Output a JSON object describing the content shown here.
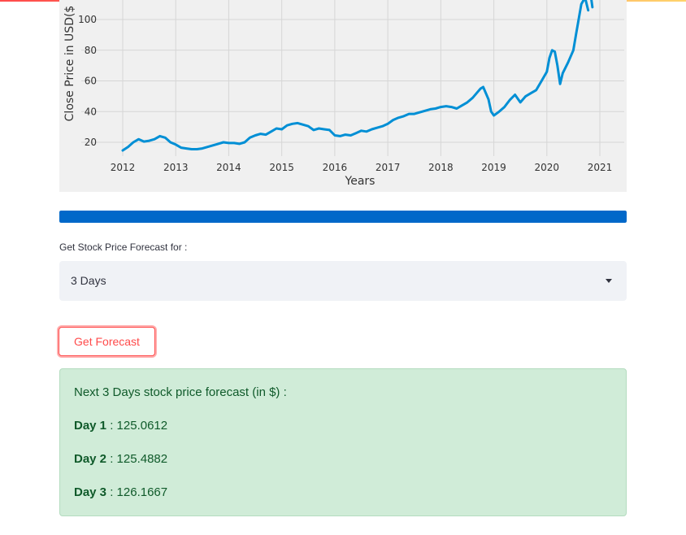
{
  "theme": {
    "accent": "#ff4b4b",
    "progress": "#0068c9",
    "line": "#008fd5",
    "success_bg": "#d0ecd8",
    "success_text": "#0f5a2a"
  },
  "chart_data": {
    "type": "line",
    "title": "",
    "xlabel": "Years",
    "ylabel": "Close Price in USD($",
    "x_ticks": [
      "2012",
      "2013",
      "2014",
      "2015",
      "2016",
      "2017",
      "2018",
      "2019",
      "2020",
      "2021"
    ],
    "y_ticks": [
      "20",
      "40",
      "60",
      "80",
      "100"
    ],
    "xlim": [
      2011.8,
      2021.25
    ],
    "ylim": [
      10,
      113
    ],
    "grid": true,
    "series": [
      {
        "x": [
          2012.0,
          2012.1,
          2012.2,
          2012.3,
          2012.4,
          2012.5,
          2012.6,
          2012.7,
          2012.8,
          2012.9,
          2013.0,
          2013.1,
          2013.2,
          2013.3,
          2013.4,
          2013.5,
          2013.6,
          2013.7,
          2013.8,
          2013.9,
          2014.0,
          2014.1,
          2014.2,
          2014.3,
          2014.4,
          2014.5,
          2014.6,
          2014.7,
          2014.8,
          2014.9,
          2015.0,
          2015.1,
          2015.2,
          2015.3,
          2015.4,
          2015.5,
          2015.6,
          2015.7,
          2015.8,
          2015.9,
          2016.0,
          2016.1,
          2016.2,
          2016.3,
          2016.4,
          2016.5,
          2016.6,
          2016.7,
          2016.8,
          2016.9,
          2017.0,
          2017.1,
          2017.2,
          2017.3,
          2017.4,
          2017.5,
          2017.6,
          2017.7,
          2017.8,
          2017.9,
          2018.0,
          2018.1,
          2018.2,
          2018.3,
          2018.4,
          2018.5,
          2018.6,
          2018.7,
          2018.75,
          2018.8,
          2018.9,
          2018.95,
          2019.0,
          2019.1,
          2019.2,
          2019.3,
          2019.4,
          2019.5,
          2019.6,
          2019.7,
          2019.8,
          2019.9,
          2020.0,
          2020.05,
          2020.1,
          2020.15,
          2020.2,
          2020.25,
          2020.3,
          2020.4,
          2020.5,
          2020.55,
          2020.6,
          2020.65,
          2020.7
        ],
        "y": [
          14.7,
          17,
          20,
          22,
          20.5,
          21,
          22,
          24,
          23,
          20,
          18.5,
          16.5,
          16,
          15.5,
          15.5,
          16,
          17,
          18,
          19,
          20,
          19.5,
          19.5,
          19,
          20,
          23,
          24.5,
          25.5,
          25,
          27,
          29,
          28.5,
          31,
          32,
          32.5,
          31.5,
          30.5,
          28,
          29,
          28.5,
          28,
          24.5,
          24,
          25,
          24.5,
          26,
          27.5,
          27,
          28.5,
          29.5,
          30.5,
          32,
          34.5,
          36,
          37,
          38.5,
          38.5,
          39.5,
          40.5,
          41.5,
          42,
          43,
          43.5,
          43,
          42,
          44,
          46,
          49,
          53,
          55,
          56,
          48,
          40,
          37.5,
          40,
          43,
          47.5,
          51,
          46,
          50,
          52,
          54,
          60,
          66,
          75,
          80,
          79,
          70,
          58,
          65,
          72,
          80,
          90,
          100,
          110,
          113
        ]
      }
    ]
  },
  "progress": {
    "value": 1.0
  },
  "forecast_select": {
    "label": "Get Stock Price Forecast for :",
    "value": "3 Days"
  },
  "forecast_button": {
    "label": "Get Forecast"
  },
  "result": {
    "heading": "Next 3 Days stock price forecast (in $) :",
    "days": [
      {
        "key": "Day 1",
        "value": ": 125.0612"
      },
      {
        "key": "Day 2",
        "value": ": 125.4882"
      },
      {
        "key": "Day 3",
        "value": ": 126.1667"
      }
    ]
  }
}
